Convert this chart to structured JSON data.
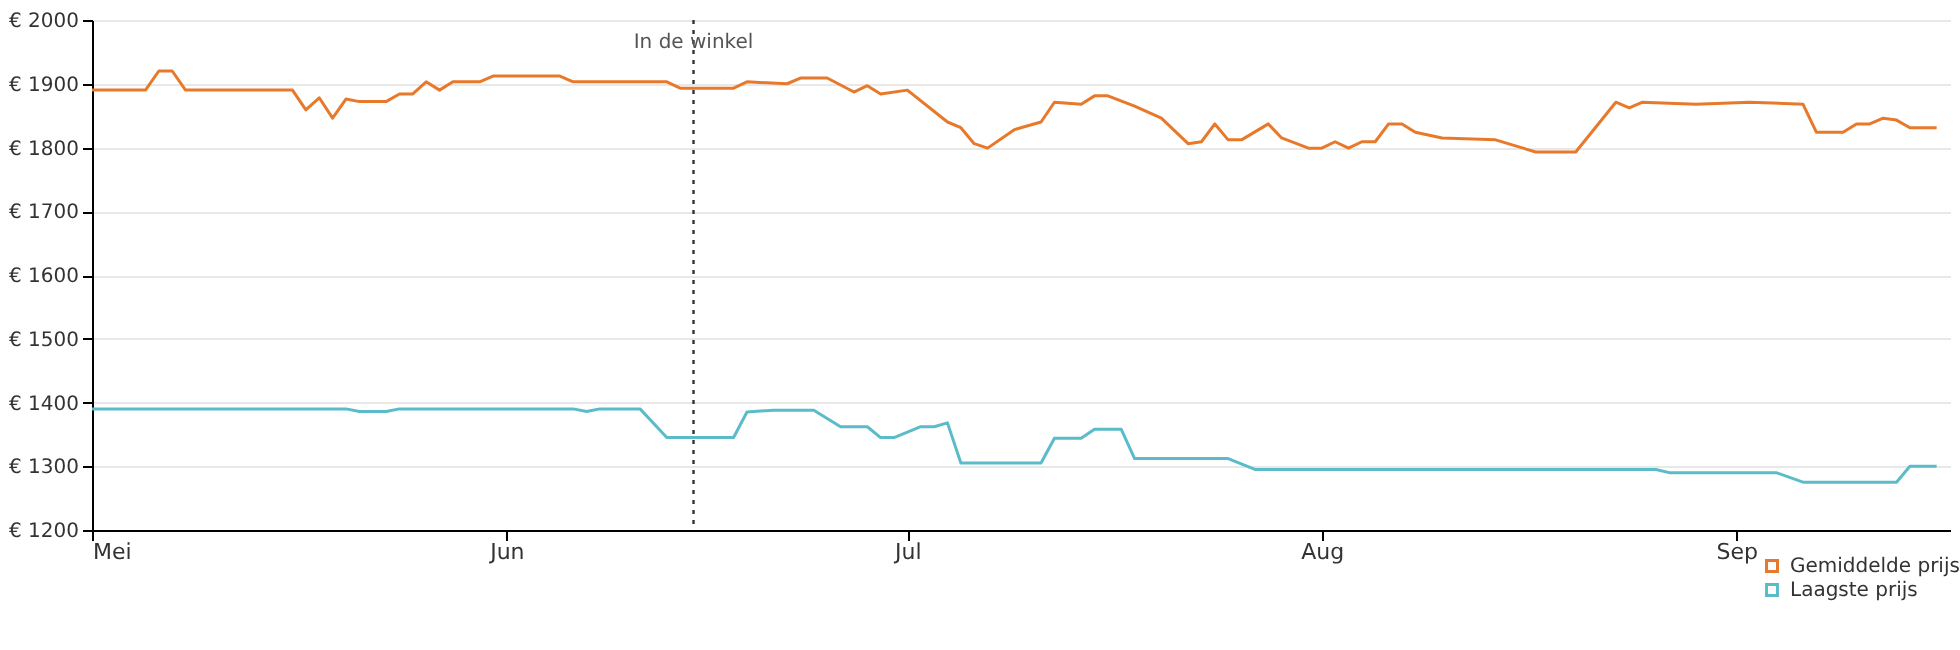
{
  "chart_data": {
    "type": "line",
    "x": [
      "--05-01",
      "--05-05",
      "--05-06",
      "--05-07",
      "--05-08",
      "--05-16",
      "--05-17",
      "--05-18",
      "--05-19",
      "--05-20",
      "--05-21",
      "--05-23",
      "--05-24",
      "--05-25",
      "--05-26",
      "--05-27",
      "--05-28",
      "--05-30",
      "--05-31",
      "--06-05",
      "--06-06",
      "--06-13",
      "--06-14",
      "--06-18",
      "--06-19",
      "--06-22",
      "--06-23",
      "--06-25",
      "--06-27",
      "--06-28",
      "--06-29",
      "--07-01",
      "--07-04",
      "--07-05",
      "--07-06",
      "--07-07",
      "--07-09",
      "--07-11",
      "--07-12",
      "--07-14",
      "--07-15",
      "--07-16",
      "--07-18",
      "--07-20",
      "--07-22",
      "--07-23",
      "--07-24",
      "--07-25",
      "--07-26",
      "--07-28",
      "--07-29",
      "--07-31",
      "--08-01",
      "--08-02",
      "--08-03",
      "--08-04",
      "--08-05",
      "--08-06",
      "--08-07",
      "--08-08",
      "--08-10",
      "--08-14",
      "--08-17",
      "--08-20",
      "--08-23",
      "--08-24",
      "--08-25",
      "--08-29",
      "--09-02",
      "--09-06",
      "--09-07",
      "--09-09",
      "--09-10",
      "--09-11",
      "--09-12",
      "--09-13",
      "--09-14",
      "--09-16"
    ],
    "series": [
      {
        "name": "Gemiddelde prijs",
        "color": "#e8792b",
        "values": [
          1890,
          1890,
          1920,
          1920,
          1890,
          1890,
          1859,
          1878,
          1846,
          1876,
          1872,
          1872,
          1884,
          1884,
          1903,
          1890,
          1903,
          1903,
          1912,
          1912,
          1903,
          1903,
          1893,
          1893,
          1903,
          1900,
          1909,
          1909,
          1887,
          1897,
          1884,
          1890,
          1840,
          1831,
          1806,
          1799,
          1828,
          1840,
          1871,
          1868,
          1881,
          1881,
          1865,
          1846,
          1806,
          1809,
          1837,
          1812,
          1812,
          1837,
          1815,
          1799,
          1799,
          1809,
          1799,
          1809,
          1809,
          1837,
          1837,
          1824,
          1815,
          1812,
          1793,
          1793,
          1871,
          1862,
          1871,
          1868,
          1871,
          1868,
          1824,
          1824,
          1837,
          1837,
          1846,
          1843,
          1831,
          1831
        ]
      },
      {
        "name": "Laagste prijs",
        "color": "#5bbcc9",
        "x": [
          "--05-01",
          "--05-20",
          "--05-21",
          "--05-23",
          "--05-24",
          "--06-06",
          "--06-07",
          "--06-08",
          "--06-11",
          "--06-13",
          "--06-18",
          "--06-19",
          "--06-21",
          "--06-24",
          "--06-26",
          "--06-28",
          "--06-29",
          "--06-30",
          "--07-02",
          "--07-03",
          "--07-04",
          "--07-05",
          "--07-11",
          "--07-12",
          "--07-14",
          "--07-15",
          "--07-17",
          "--07-18",
          "--07-25",
          "--07-27",
          "--08-26",
          "--08-27",
          "--09-04",
          "--09-06",
          "--09-13",
          "--09-14",
          "--09-16"
        ],
        "values": [
          1390,
          1390,
          1386,
          1386,
          1390,
          1390,
          1386,
          1390,
          1390,
          1345,
          1345,
          1385,
          1388,
          1388,
          1362,
          1362,
          1345,
          1345,
          1362,
          1362,
          1368,
          1305,
          1305,
          1344,
          1344,
          1358,
          1358,
          1312,
          1312,
          1295,
          1295,
          1290,
          1290,
          1275,
          1275,
          1300,
          1300
        ]
      }
    ],
    "xlim": [
      "--05-01",
      "--09-17"
    ],
    "xticks": [
      {
        "value": "--05-01",
        "label": "Mei"
      },
      {
        "value": "--06-01",
        "label": "Jun"
      },
      {
        "value": "--07-01",
        "label": "Jul"
      },
      {
        "value": "--08-01",
        "label": "Aug"
      },
      {
        "value": "--09-01",
        "label": "Sep"
      }
    ],
    "ylim": [
      1200,
      2000
    ],
    "yticks": [
      {
        "value": 1200,
        "label": "€ 1200"
      },
      {
        "value": 1300,
        "label": "€ 1300"
      },
      {
        "value": 1400,
        "label": "€ 1400"
      },
      {
        "value": 1500,
        "label": "€ 1500"
      },
      {
        "value": 1600,
        "label": "€ 1600"
      },
      {
        "value": 1700,
        "label": "€ 1700"
      },
      {
        "value": 1800,
        "label": "€ 1800"
      },
      {
        "value": 1900,
        "label": "€ 1900"
      },
      {
        "value": 2000,
        "label": "€ 2000"
      }
    ],
    "ref_lines": [
      {
        "axis": "x",
        "value": "--06-15",
        "label": "In de winkel",
        "line_style": "dotted"
      }
    ],
    "grid": "y",
    "legend": "bottom right",
    "marker": "none",
    "line_style": "solid"
  }
}
